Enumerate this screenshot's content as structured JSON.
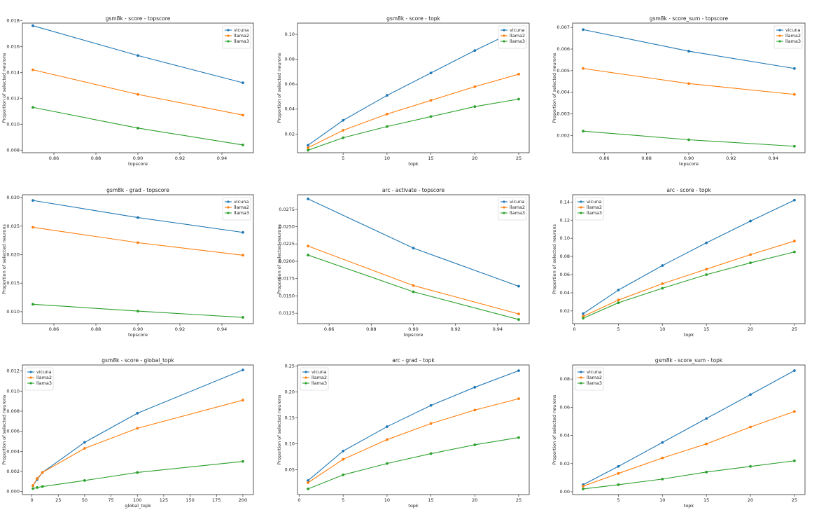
{
  "chart_data": [
    {
      "type": "line",
      "title": "gsm8k - score - topscore",
      "xlabel": "topscore",
      "ylabel": "Proportion of selected neurons",
      "legend": "upper right",
      "x": [
        0.85,
        0.9,
        0.95
      ],
      "xlim": [
        0.845,
        0.955
      ],
      "xticks": [
        0.86,
        0.88,
        {
          "value": 0.9,
          "label": "0.90"
        },
        0.92,
        0.94
      ],
      "ylim": [
        0.0078,
        0.0178
      ],
      "yticks": [
        0.008,
        {
          "value": 0.01,
          "label": "0.010"
        },
        0.012,
        0.014,
        0.016,
        0.018
      ],
      "series": [
        {
          "name": "vicuna",
          "color": "#1f77b4",
          "values": [
            0.0176,
            0.0153,
            0.0132
          ]
        },
        {
          "name": "llama2",
          "color": "#ff7f0e",
          "values": [
            0.0142,
            0.0123,
            0.0107
          ]
        },
        {
          "name": "llama3",
          "color": "#2ca02c",
          "values": [
            0.0113,
            0.0097,
            0.0084
          ]
        }
      ]
    },
    {
      "type": "line",
      "title": "gsm8k - score - topk",
      "xlabel": "topk",
      "ylabel": "Proportion of selected neurons",
      "legend": "upper right",
      "x": [
        1,
        5,
        10,
        15,
        20,
        25
      ],
      "xlim": [
        -0.2,
        26.2
      ],
      "xticks": [
        5,
        10,
        15,
        20,
        25
      ],
      "ylim": [
        0.005,
        0.109
      ],
      "yticks": [
        0.02,
        0.04,
        0.06,
        0.08,
        {
          "value": 0.1,
          "label": "0.10"
        }
      ],
      "series": [
        {
          "name": "vicuna",
          "color": "#1f77b4",
          "values": [
            0.011,
            0.031,
            0.051,
            0.069,
            0.087,
            0.104
          ]
        },
        {
          "name": "llama2",
          "color": "#ff7f0e",
          "values": [
            0.009,
            0.023,
            0.036,
            0.047,
            0.058,
            0.068
          ]
        },
        {
          "name": "llama3",
          "color": "#2ca02c",
          "values": [
            0.007,
            0.017,
            0.026,
            0.034,
            0.042,
            0.048
          ]
        }
      ]
    },
    {
      "type": "line",
      "title": "gsm8k - score_sum - topscore",
      "xlabel": "topscore",
      "ylabel": "Proportion of selected neurons",
      "legend": "upper right",
      "x": [
        0.85,
        0.9,
        0.95
      ],
      "xlim": [
        0.845,
        0.955
      ],
      "xticks": [
        0.86,
        0.88,
        {
          "value": 0.9,
          "label": "0.90"
        },
        0.92,
        0.94
      ],
      "ylim": [
        0.0012,
        0.0072
      ],
      "yticks": [
        0.002,
        0.003,
        0.004,
        0.005,
        0.006,
        0.007
      ],
      "series": [
        {
          "name": "vicuna",
          "color": "#1f77b4",
          "values": [
            0.0069,
            0.0059,
            0.0051
          ]
        },
        {
          "name": "llama2",
          "color": "#ff7f0e",
          "values": [
            0.0051,
            0.0044,
            0.0039
          ]
        },
        {
          "name": "llama3",
          "color": "#2ca02c",
          "values": [
            0.0022,
            0.0018,
            0.0015
          ]
        }
      ]
    },
    {
      "type": "line",
      "title": "gsm8k - grad - topscore",
      "xlabel": "topscore",
      "ylabel": "Proportion of selected neurons",
      "legend": "upper right",
      "x": [
        0.85,
        0.9,
        0.95
      ],
      "xlim": [
        0.845,
        0.955
      ],
      "xticks": [
        0.86,
        0.88,
        {
          "value": 0.9,
          "label": "0.90"
        },
        0.92,
        0.94
      ],
      "ylim": [
        0.0079,
        0.0305
      ],
      "yticks": [
        {
          "value": 0.01,
          "label": "0.010"
        },
        0.015,
        {
          "value": 0.02,
          "label": "0.020"
        },
        0.025,
        {
          "value": 0.03,
          "label": "0.030"
        }
      ],
      "series": [
        {
          "name": "vicuna",
          "color": "#1f77b4",
          "values": [
            0.0295,
            0.0265,
            0.0239
          ]
        },
        {
          "name": "llama2",
          "color": "#ff7f0e",
          "values": [
            0.0248,
            0.0221,
            0.0199
          ]
        },
        {
          "name": "llama3",
          "color": "#2ca02c",
          "values": [
            0.0113,
            0.0101,
            0.009
          ]
        }
      ]
    },
    {
      "type": "line",
      "title": "arc - activate - topscore",
      "xlabel": "topscore",
      "ylabel": "Proportion of selected neurons",
      "legend": "upper right",
      "x": [
        0.85,
        0.9,
        0.95
      ],
      "xlim": [
        0.845,
        0.955
      ],
      "xticks": [
        0.86,
        0.88,
        {
          "value": 0.9,
          "label": "0.90"
        },
        0.92,
        0.94
      ],
      "ylim": [
        0.011,
        0.0296
      ],
      "yticks": [
        0.0125,
        {
          "value": 0.015,
          "label": "0.0150"
        },
        0.0175,
        {
          "value": 0.02,
          "label": "0.0200"
        },
        0.0225,
        {
          "value": 0.025,
          "label": "0.0250"
        },
        0.0275
      ],
      "series": [
        {
          "name": "vicuna",
          "color": "#1f77b4",
          "values": [
            0.029,
            0.0219,
            0.0164
          ]
        },
        {
          "name": "llama2",
          "color": "#ff7f0e",
          "values": [
            0.0222,
            0.0165,
            0.0124
          ]
        },
        {
          "name": "llama3",
          "color": "#2ca02c",
          "values": [
            0.0209,
            0.0156,
            0.0116
          ]
        }
      ]
    },
    {
      "type": "line",
      "title": "arc - score - topk",
      "xlabel": "topk",
      "ylabel": "Proportion of selected neurons",
      "legend": "upper left",
      "x": [
        1,
        5,
        10,
        15,
        20,
        25
      ],
      "xlim": [
        -0.2,
        26.2
      ],
      "xticks": [
        0,
        5,
        10,
        15,
        20,
        25
      ],
      "ylim": [
        0.006,
        0.148
      ],
      "yticks": [
        0.02,
        0.04,
        0.06,
        0.08,
        {
          "value": 0.1,
          "label": "0.10"
        },
        0.12,
        0.14
      ],
      "series": [
        {
          "name": "vicuna",
          "color": "#1f77b4",
          "values": [
            0.017,
            0.043,
            0.07,
            0.095,
            0.119,
            0.142
          ]
        },
        {
          "name": "llama2",
          "color": "#ff7f0e",
          "values": [
            0.014,
            0.032,
            0.05,
            0.066,
            0.082,
            0.097
          ]
        },
        {
          "name": "llama3",
          "color": "#2ca02c",
          "values": [
            0.012,
            0.029,
            0.045,
            0.06,
            0.073,
            0.085
          ]
        }
      ]
    },
    {
      "type": "line",
      "title": "gsm8k - score - global_topk",
      "xlabel": "global_topk",
      "ylabel": "Proportion of selected neurons",
      "legend": "upper left",
      "x": [
        1,
        5,
        10,
        50,
        100,
        200
      ],
      "xlim": [
        -9,
        210
      ],
      "xticks": [
        0,
        25,
        50,
        75,
        100,
        125,
        150,
        175,
        200
      ],
      "ylim": [
        -0.0003,
        0.0126
      ],
      "yticks": [
        {
          "value": 0,
          "label": "0.000"
        },
        0.002,
        0.004,
        0.006,
        0.008,
        {
          "value": 0.01,
          "label": "0.010"
        },
        0.012
      ],
      "series": [
        {
          "name": "vicuna",
          "color": "#1f77b4",
          "values": [
            0.0006,
            0.0012,
            0.0019,
            0.0049,
            0.0078,
            0.0121
          ]
        },
        {
          "name": "llama2",
          "color": "#ff7f0e",
          "values": [
            0.0006,
            0.0013,
            0.0019,
            0.0043,
            0.0063,
            0.0091
          ]
        },
        {
          "name": "llama3",
          "color": "#2ca02c",
          "values": [
            0.0003,
            0.0004,
            0.0005,
            0.0011,
            0.0019,
            0.003
          ]
        }
      ]
    },
    {
      "type": "line",
      "title": "arc - grad - topk",
      "xlabel": "topk",
      "ylabel": "Proportion of selected neurons",
      "legend": "upper left",
      "x": [
        1,
        5,
        10,
        15,
        20,
        25
      ],
      "xlim": [
        -0.2,
        26.2
      ],
      "xticks": [
        0,
        5,
        10,
        15,
        20,
        25
      ],
      "ylim": [
        0.002,
        0.252
      ],
      "yticks": [
        0.05,
        {
          "value": 0.1,
          "label": "0.10"
        },
        0.15,
        {
          "value": 0.2,
          "label": "0.20"
        },
        0.25
      ],
      "series": [
        {
          "name": "vicuna",
          "color": "#1f77b4",
          "values": [
            0.029,
            0.086,
            0.133,
            0.174,
            0.209,
            0.241
          ]
        },
        {
          "name": "llama2",
          "color": "#ff7f0e",
          "values": [
            0.025,
            0.07,
            0.108,
            0.139,
            0.165,
            0.187
          ]
        },
        {
          "name": "llama3",
          "color": "#2ca02c",
          "values": [
            0.013,
            0.04,
            0.062,
            0.081,
            0.098,
            0.112
          ]
        }
      ]
    },
    {
      "type": "line",
      "title": "gsm8k - score_sum - topk",
      "xlabel": "topk",
      "ylabel": "Proportion of selected neurons",
      "legend": "upper left",
      "x": [
        1,
        5,
        10,
        15,
        20,
        25
      ],
      "xlim": [
        -0.2,
        26.2
      ],
      "xticks": [
        5,
        10,
        15,
        20,
        25
      ],
      "ylim": [
        -0.002,
        0.09
      ],
      "yticks": [
        {
          "value": 0,
          "label": "0.00"
        },
        0.02,
        0.04,
        0.06,
        0.08
      ],
      "series": [
        {
          "name": "vicuna",
          "color": "#1f77b4",
          "values": [
            0.005,
            0.018,
            0.035,
            0.052,
            0.069,
            0.086
          ]
        },
        {
          "name": "llama2",
          "color": "#ff7f0e",
          "values": [
            0.004,
            0.013,
            0.024,
            0.034,
            0.046,
            0.057
          ]
        },
        {
          "name": "llama3",
          "color": "#2ca02c",
          "values": [
            0.002,
            0.005,
            0.009,
            0.014,
            0.018,
            0.022
          ]
        }
      ]
    }
  ]
}
